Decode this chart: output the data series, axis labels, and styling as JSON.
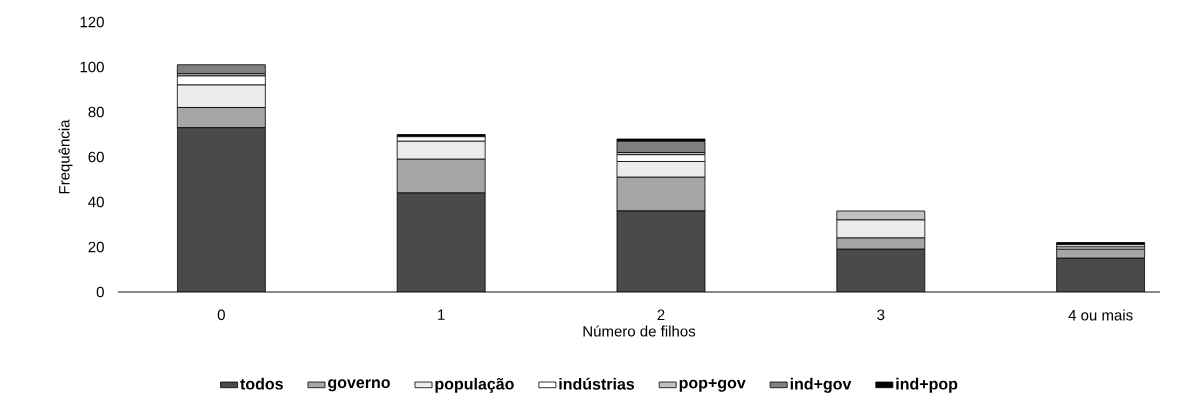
{
  "chart_data": {
    "type": "bar",
    "stacked": true,
    "xlabel": "Número de filhos",
    "ylabel": "Frequência",
    "categories": [
      "0",
      "1",
      "2",
      "3",
      "4 ou mais"
    ],
    "series": [
      {
        "name": "todos",
        "color": "#4a4a4a",
        "values": [
          73,
          44,
          36,
          19,
          15
        ]
      },
      {
        "name": "governo",
        "color": "#a6a6a6",
        "values": [
          9,
          15,
          15,
          5,
          4
        ]
      },
      {
        "name": "população",
        "color": "#ececec",
        "values": [
          10,
          8,
          7,
          8,
          1
        ]
      },
      {
        "name": "indústrias",
        "color": "#ffffff",
        "values": [
          4,
          2,
          3,
          0,
          1
        ]
      },
      {
        "name": "pop+gov",
        "color": "#c0c0c0",
        "values": [
          1,
          0,
          1,
          4,
          0
        ]
      },
      {
        "name": "ind+gov",
        "color": "#808080",
        "values": [
          4,
          0,
          5,
          0,
          0
        ]
      },
      {
        "name": "ind+pop",
        "color": "#000000",
        "values": [
          0,
          1,
          1,
          0,
          1
        ]
      }
    ],
    "ylim": [
      0,
      120
    ],
    "yticks": [
      0,
      20,
      40,
      60,
      80,
      100,
      120
    ],
    "legend": "bottom"
  }
}
